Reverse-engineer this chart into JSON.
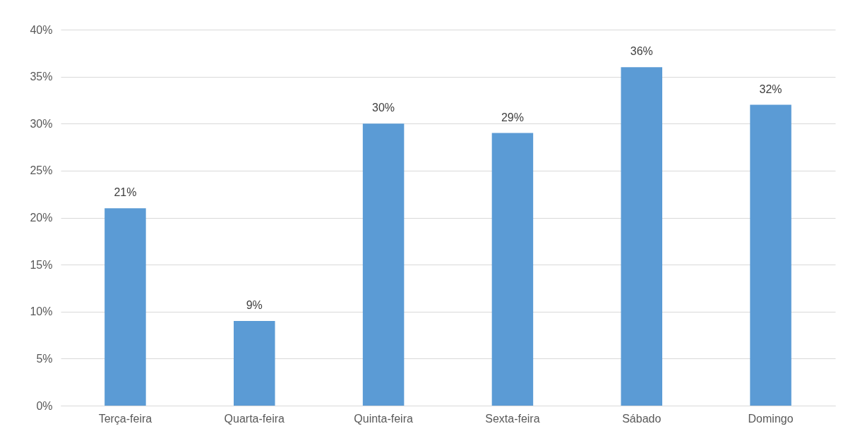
{
  "chart_data": {
    "type": "bar",
    "categories": [
      "Terça-feira",
      "Quarta-feira",
      "Quinta-feira",
      "Sexta-feira",
      "Sábado",
      "Domingo"
    ],
    "values": [
      21,
      9,
      30,
      29,
      36,
      32
    ],
    "value_labels": [
      "21%",
      "9%",
      "30%",
      "29%",
      "36%",
      "32%"
    ],
    "color": "#5b9bd5",
    "ylim": [
      0,
      40
    ],
    "yticks": [
      {
        "value": 0,
        "label": "0%"
      },
      {
        "value": 5,
        "label": "5%"
      },
      {
        "value": 10,
        "label": "10%"
      },
      {
        "value": 15,
        "label": "15%"
      },
      {
        "value": 20,
        "label": "20%"
      },
      {
        "value": 25,
        "label": "25%"
      },
      {
        "value": 30,
        "label": "30%"
      },
      {
        "value": 35,
        "label": "35%"
      },
      {
        "value": 40,
        "label": "40%"
      }
    ],
    "grid": "y"
  }
}
